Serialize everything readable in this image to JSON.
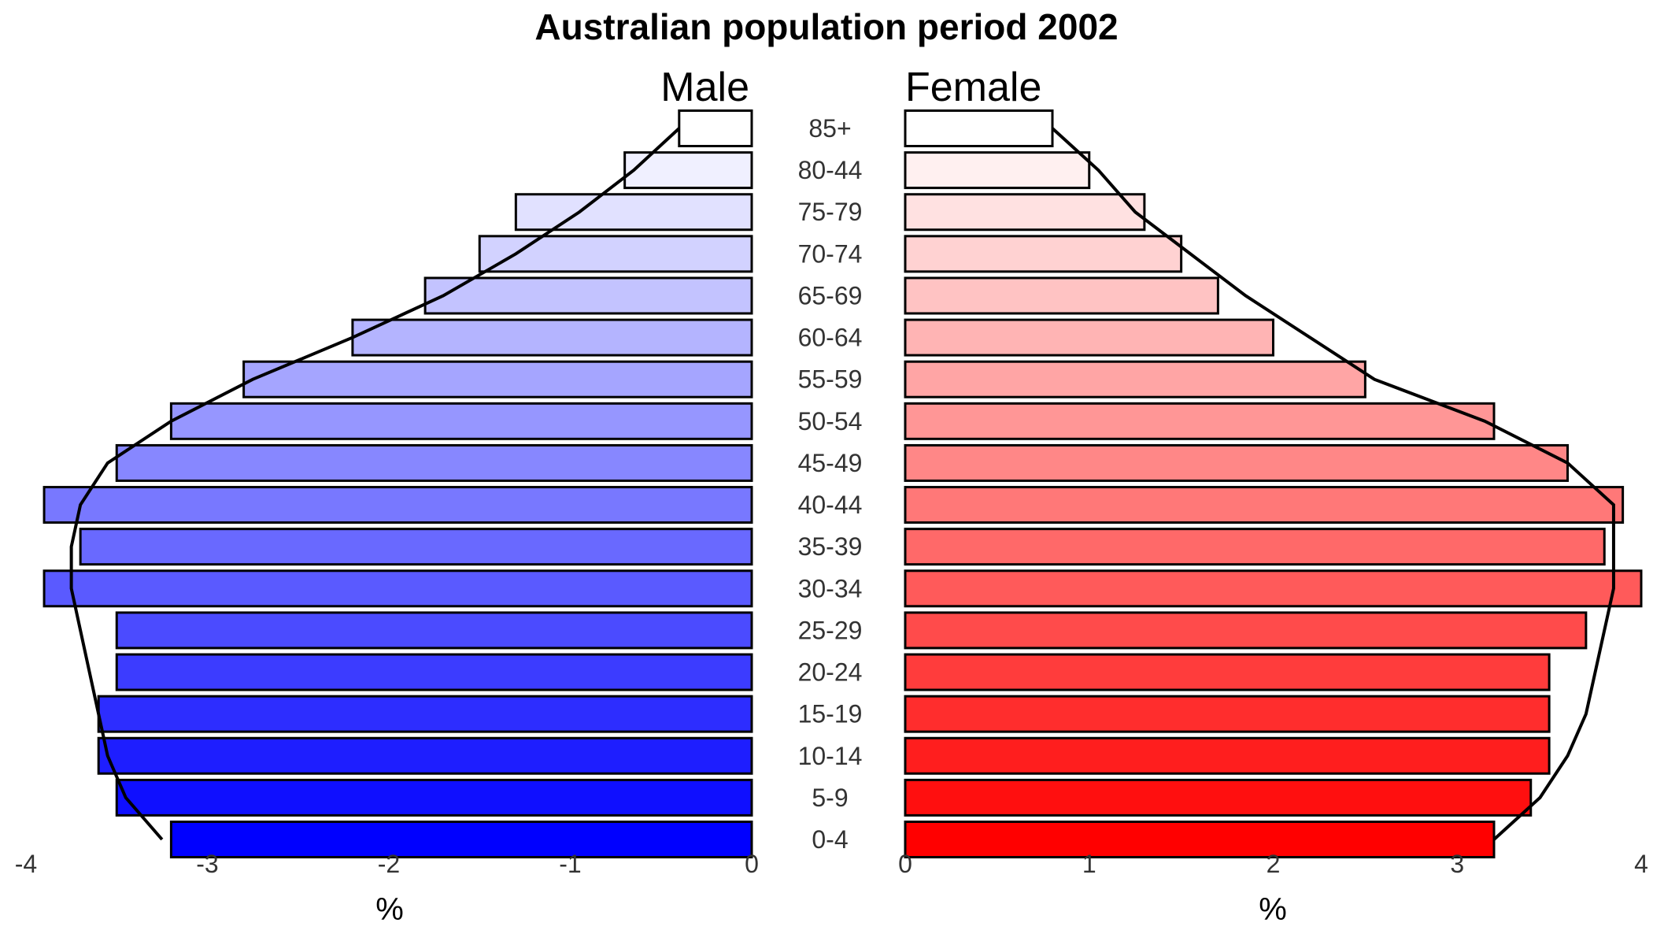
{
  "chart_data": {
    "type": "bar",
    "title": "Australian population period 2002",
    "orientation": "horizontal-pyramid",
    "categories": [
      "0-4",
      "5-9",
      "10-14",
      "15-19",
      "20-24",
      "25-29",
      "30-34",
      "35-39",
      "40-44",
      "45-49",
      "50-54",
      "55-59",
      "60-64",
      "65-69",
      "70-74",
      "75-79",
      "80-44",
      "85+"
    ],
    "series": [
      {
        "name": "Male",
        "values": [
          3.2,
          3.5,
          3.6,
          3.6,
          3.5,
          3.5,
          3.9,
          3.7,
          3.9,
          3.5,
          3.2,
          2.8,
          2.2,
          1.8,
          1.5,
          1.3,
          0.7,
          0.4
        ],
        "plotted_as": "negative",
        "color_light": "#ffffff",
        "color_dark": "#0000ff",
        "reference_line": [
          3.25,
          3.45,
          3.55,
          3.6,
          3.65,
          3.7,
          3.75,
          3.75,
          3.7,
          3.55,
          3.2,
          2.75,
          2.2,
          1.7,
          1.3,
          0.95,
          0.65,
          0.4
        ]
      },
      {
        "name": "Female",
        "values": [
          3.2,
          3.4,
          3.5,
          3.5,
          3.5,
          3.7,
          4.0,
          3.8,
          3.9,
          3.6,
          3.2,
          2.5,
          2.0,
          1.7,
          1.5,
          1.3,
          1.0,
          0.8
        ],
        "color_light": "#ffffff",
        "color_dark": "#ff0000",
        "reference_line": [
          3.2,
          3.45,
          3.6,
          3.7,
          3.75,
          3.8,
          3.85,
          3.85,
          3.85,
          3.6,
          3.15,
          2.55,
          2.2,
          1.85,
          1.55,
          1.25,
          1.05,
          0.8
        ]
      }
    ],
    "male_axis": {
      "ticks": [
        -4,
        -3,
        -2,
        -1,
        0
      ],
      "xlim": [
        -4,
        0
      ],
      "xlabel": "%"
    },
    "female_axis": {
      "ticks": [
        0,
        1,
        2,
        3,
        4
      ],
      "xlim": [
        0,
        4
      ],
      "xlabel": "%"
    },
    "grid": false,
    "legend": "none"
  }
}
